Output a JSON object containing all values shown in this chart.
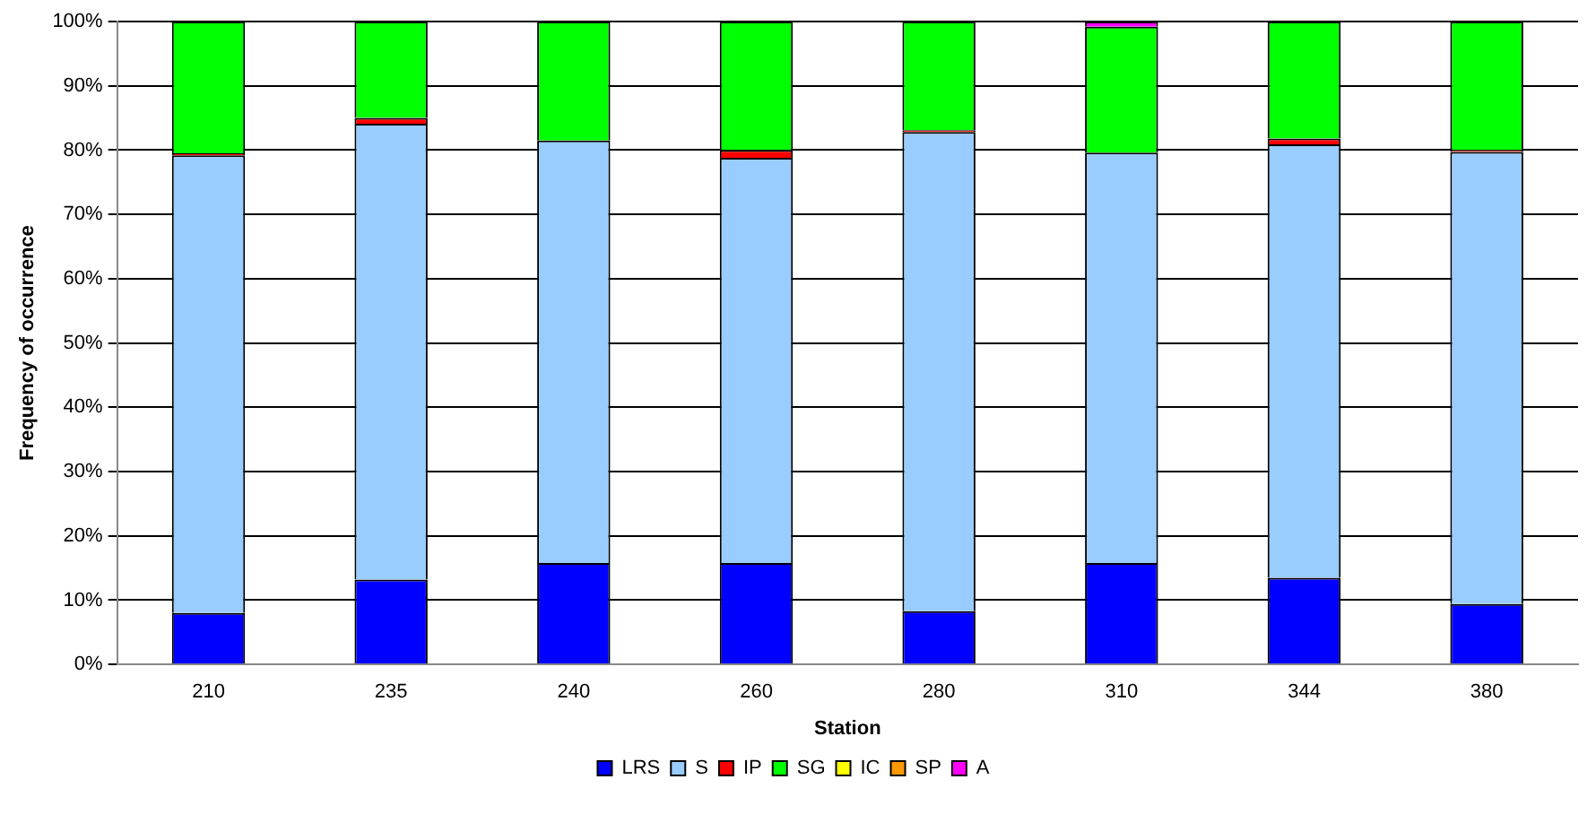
{
  "chart_data": {
    "type": "bar",
    "stacked": true,
    "xlabel": "Station",
    "ylabel": "Frequency of occurrence",
    "categories": [
      "210",
      "235",
      "240",
      "260",
      "280",
      "310",
      "344",
      "380"
    ],
    "series": [
      {
        "name": "LRS",
        "color": "#0000ff",
        "values": [
          8,
          13.2,
          15.8,
          15.8,
          8.3,
          15.8,
          13.5,
          9.4
        ]
      },
      {
        "name": "S",
        "color": "#99ccff",
        "values": [
          71.2,
          70.9,
          65.7,
          63.0,
          74.5,
          63.8,
          67.4,
          70.3
        ]
      },
      {
        "name": "IP",
        "color": "#ff0000",
        "values": [
          0.3,
          0.9,
          0,
          1.2,
          0.3,
          0,
          0.9,
          0.3
        ]
      },
      {
        "name": "SG",
        "color": "#00ff00",
        "values": [
          20.5,
          15.0,
          18.5,
          20.0,
          16.9,
          19.6,
          18.2,
          20.0
        ]
      },
      {
        "name": "IC",
        "color": "#ffff00",
        "values": [
          0,
          0,
          0,
          0,
          0,
          0,
          0,
          0
        ]
      },
      {
        "name": "SP",
        "color": "#ff9900",
        "values": [
          0,
          0,
          0,
          0,
          0,
          0,
          0,
          0
        ]
      },
      {
        "name": "A",
        "color": "#ff00ff",
        "values": [
          0,
          0,
          0,
          0,
          0,
          0.8,
          0,
          0
        ]
      }
    ],
    "ylim": [
      0,
      100
    ],
    "yticks": [
      {
        "value": 0,
        "label": "0%"
      },
      {
        "value": 10,
        "label": "10%"
      },
      {
        "value": 20,
        "label": "20%"
      },
      {
        "value": 30,
        "label": "30%"
      },
      {
        "value": 40,
        "label": "40%"
      },
      {
        "value": 50,
        "label": "50%"
      },
      {
        "value": 60,
        "label": "60%"
      },
      {
        "value": 70,
        "label": "70%"
      },
      {
        "value": 80,
        "label": "80%"
      },
      {
        "value": 90,
        "label": "90%"
      },
      {
        "value": 100,
        "label": "100%"
      }
    ],
    "grid": "y",
    "legend": "bottom"
  }
}
